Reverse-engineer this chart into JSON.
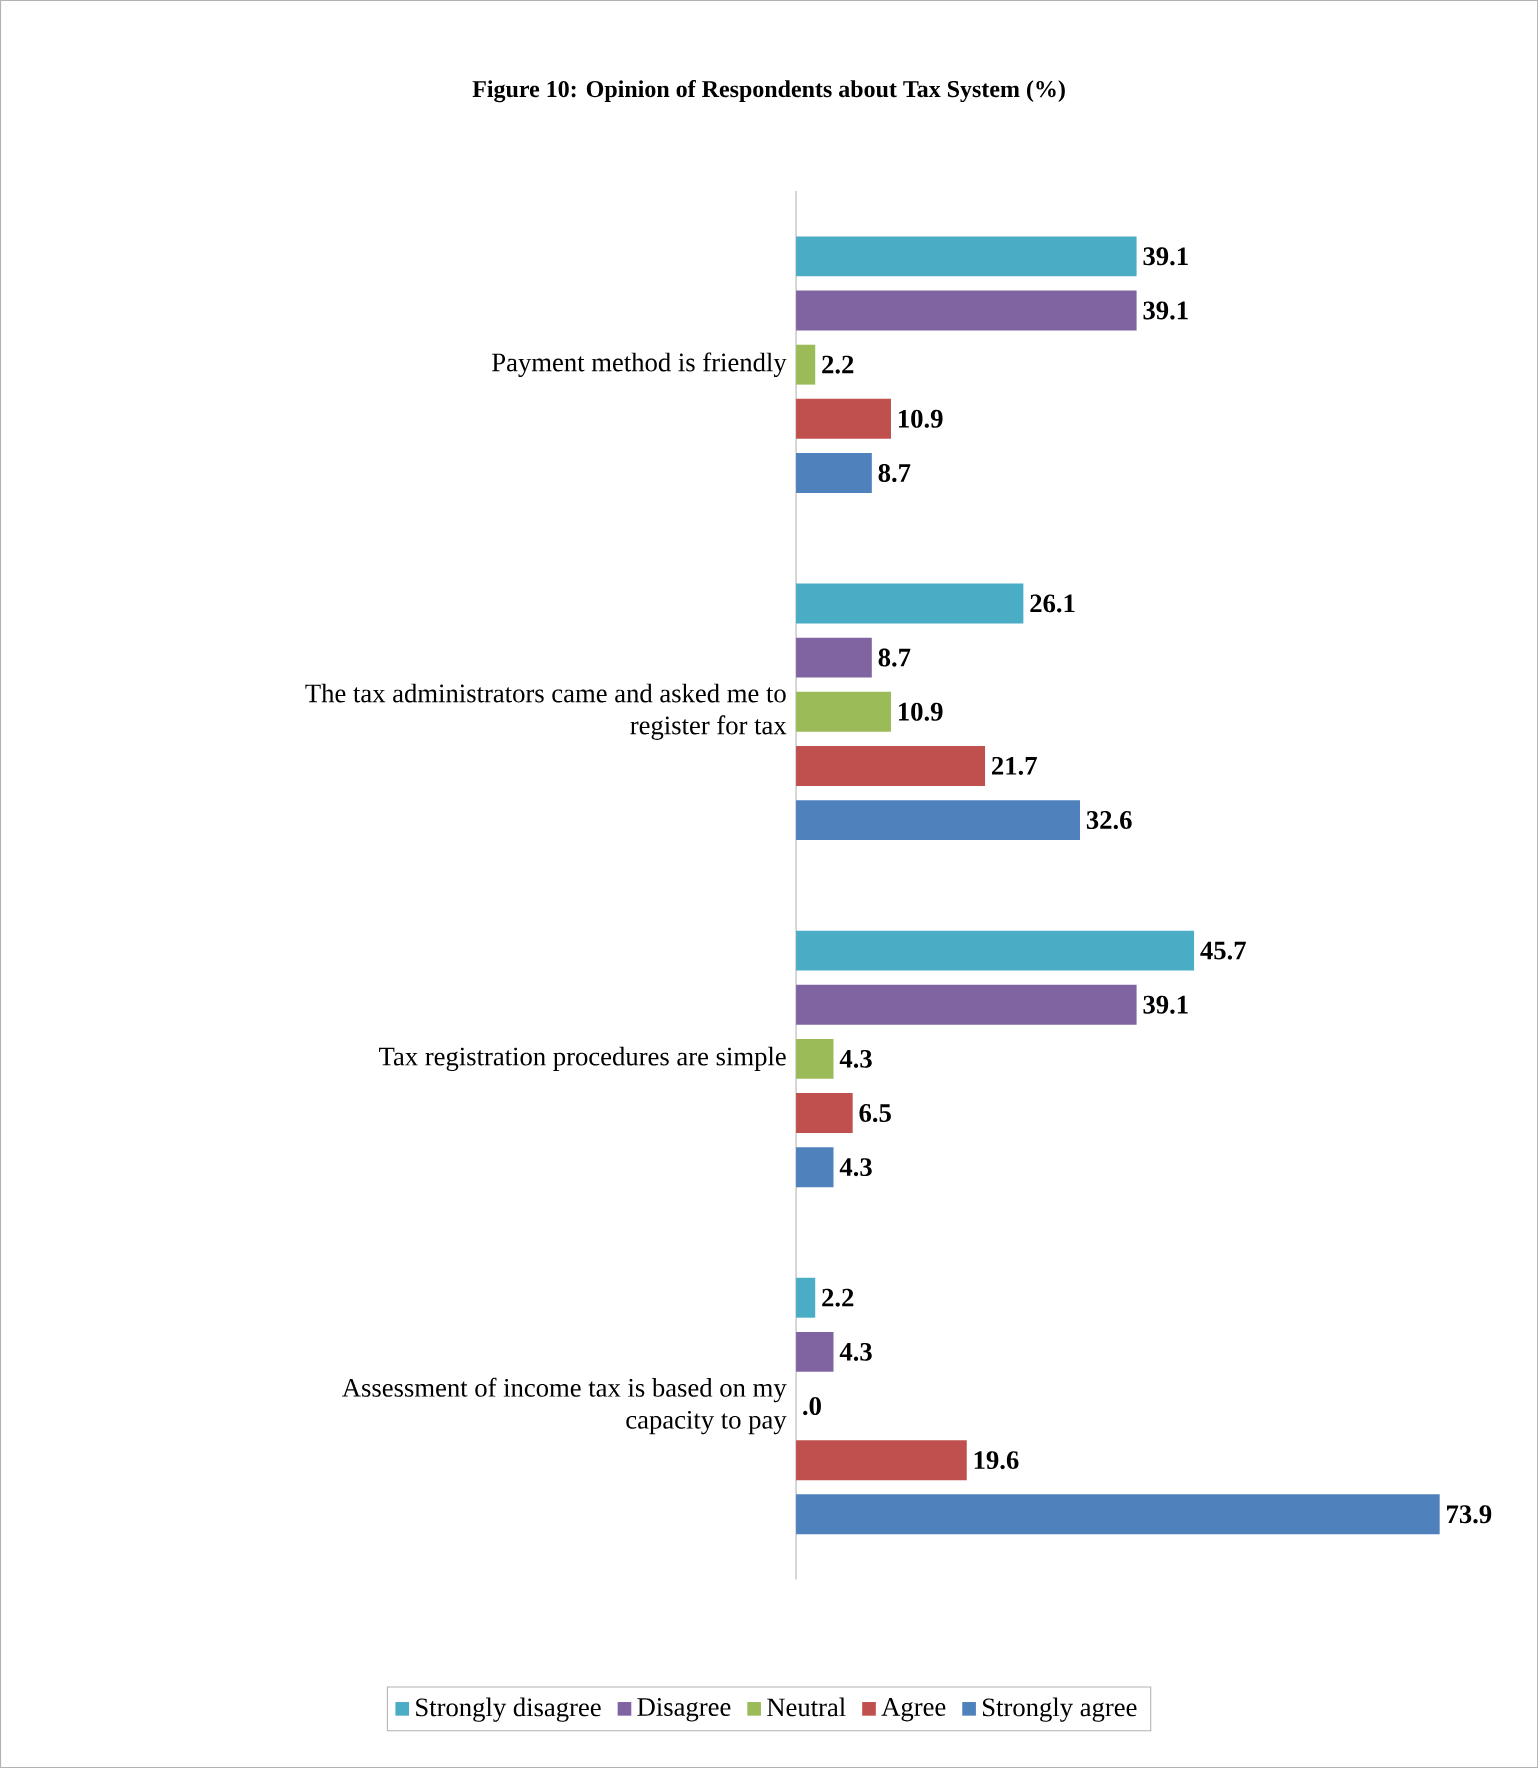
{
  "chart_data": {
    "type": "bar",
    "orientation": "horizontal",
    "title": "Figure 10: Opinion of Respondents about Tax System (%)",
    "categories": [
      "Payment method is friendly",
      "The tax administrators came and asked me to register for tax",
      "Tax registration procedures are simple",
      "Assessment of income tax is based on my capacity to pay"
    ],
    "series": [
      {
        "name": "Strongly disagree",
        "color": "#4bacc6",
        "values": [
          39.1,
          26.1,
          45.7,
          2.2
        ],
        "value_labels": [
          "39.1",
          "26.1",
          "45.7",
          "2.2"
        ]
      },
      {
        "name": "Disagree",
        "color": "#8064a2",
        "values": [
          39.1,
          8.7,
          39.1,
          4.3
        ],
        "value_labels": [
          "39.1",
          "8.7",
          "39.1",
          "4.3"
        ]
      },
      {
        "name": "Neutral",
        "color": "#9bbb59",
        "values": [
          2.2,
          10.9,
          4.3,
          0
        ],
        "value_labels": [
          "2.2",
          "10.9",
          "4.3",
          ".0"
        ]
      },
      {
        "name": "Agree",
        "color": "#c0504d",
        "values": [
          10.9,
          21.7,
          6.5,
          19.6
        ],
        "value_labels": [
          "10.9",
          "21.7",
          "6.5",
          "19.6"
        ]
      },
      {
        "name": "Strongly agree",
        "color": "#4f81bd",
        "values": [
          8.7,
          32.6,
          4.3,
          73.9
        ],
        "value_labels": [
          "8.7",
          "32.6",
          "4.3",
          "73.9"
        ]
      }
    ],
    "legend": "bottom"
  }
}
